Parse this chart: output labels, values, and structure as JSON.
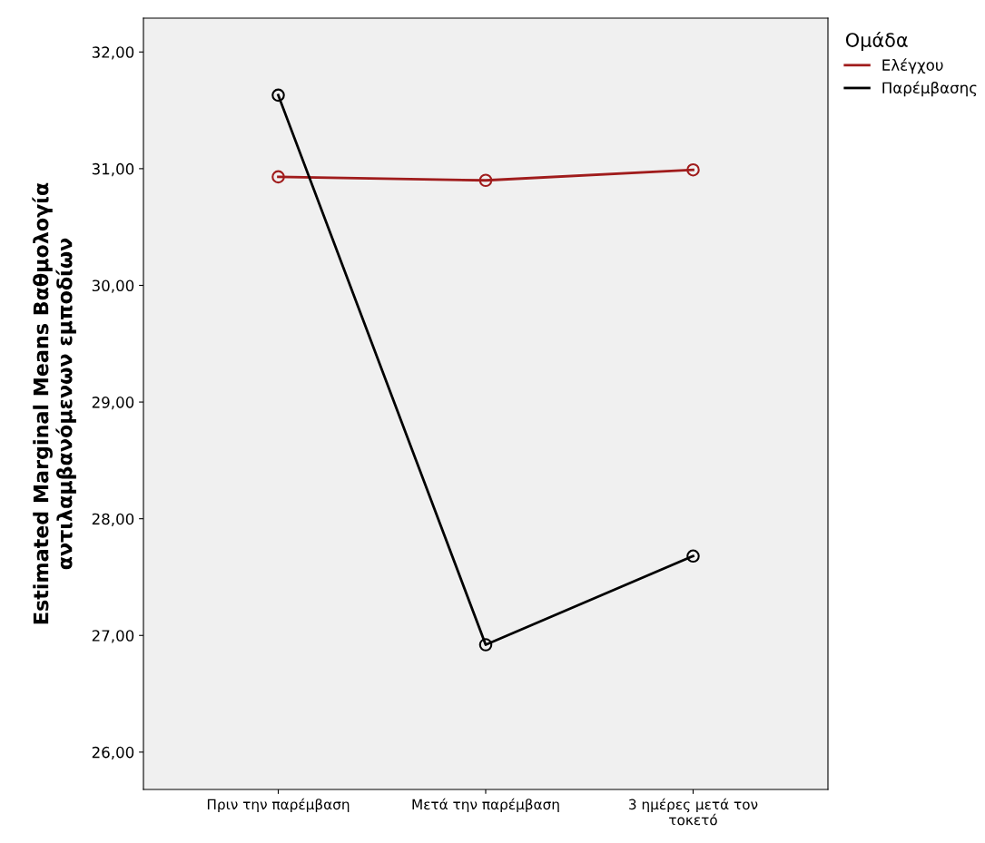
{
  "chart_data": {
    "type": "line",
    "ylabel": "Estimated Marginal Means Βαθμολογία αντιλαμβανόμενων εμποδίων",
    "legend_title": "Ομάδα",
    "categories": [
      "Πριν την παρέμβαση",
      "Μετά την παρέμβαση",
      "3 ημέρες μετά τον τοκετό"
    ],
    "series": [
      {
        "name": "Ελέγχου",
        "color": "#a01c1c",
        "values": [
          30.93,
          30.9,
          30.99
        ]
      },
      {
        "name": "Παρέμβασης",
        "color": "#000000",
        "values": [
          31.63,
          26.92,
          27.68
        ]
      }
    ],
    "ylim": [
      25.68,
      32.29
    ],
    "yticks": [
      {
        "value": 26,
        "label": "26,00"
      },
      {
        "value": 27,
        "label": "27,00"
      },
      {
        "value": 28,
        "label": "28,00"
      },
      {
        "value": 29,
        "label": "29,00"
      },
      {
        "value": 30,
        "label": "30,00"
      },
      {
        "value": 31,
        "label": "31,00"
      },
      {
        "value": 32,
        "label": "32,00"
      }
    ],
    "grid": false,
    "legend": "top right",
    "marker": "circle",
    "line_style": "solid"
  }
}
